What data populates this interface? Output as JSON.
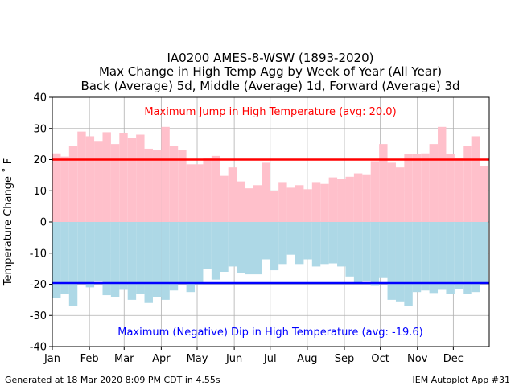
{
  "chart_data": {
    "type": "bar",
    "title_lines": [
      "IA0200 AMES-8-WSW (1893-2020)",
      "Max Change in High Temp Agg by Week of Year (All Year)",
      "Back (Average) 5d, Middle (Average) 1d, Forward (Average) 3d"
    ],
    "ylabel": "Temperature Change ˚ F",
    "ylim": [
      -40,
      40
    ],
    "yticks": [
      40,
      30,
      20,
      10,
      0,
      -10,
      -20,
      -30,
      -40
    ],
    "xlim": [
      1,
      366
    ],
    "xticks": [
      {
        "label": "Jan",
        "day": 1
      },
      {
        "label": "Feb",
        "day": 32
      },
      {
        "label": "Mar",
        "day": 61
      },
      {
        "label": "Apr",
        "day": 92
      },
      {
        "label": "May",
        "day": 122
      },
      {
        "label": "Jun",
        "day": 153
      },
      {
        "label": "Jul",
        "day": 183
      },
      {
        "label": "Aug",
        "day": 214
      },
      {
        "label": "Sep",
        "day": 245
      },
      {
        "label": "Oct",
        "day": 275
      },
      {
        "label": "Nov",
        "day": 306
      },
      {
        "label": "Dec",
        "day": 336
      }
    ],
    "grid": true,
    "series": [
      {
        "name": "Maximum Jump",
        "color": "#ffc0cb",
        "values": [
          22.0,
          21.0,
          24.5,
          29.0,
          27.5,
          26.0,
          28.8,
          25.0,
          28.5,
          27.0,
          28.0,
          23.5,
          23.0,
          30.5,
          24.5,
          23.0,
          18.5,
          18.5,
          20.5,
          21.2,
          14.8,
          17.5,
          13.0,
          10.8,
          11.8,
          19.0,
          10.0,
          12.8,
          11.0,
          11.8,
          10.5,
          12.8,
          12.2,
          14.3,
          13.8,
          14.5,
          15.6,
          15.3,
          19.5,
          25.0,
          19.0,
          17.5,
          21.8,
          21.8,
          22.0,
          25.0,
          30.5,
          21.8,
          20.5,
          24.5,
          27.5,
          18.0
        ]
      },
      {
        "name": "Maximum Dip",
        "color": "#add8e6",
        "values": [
          -24.5,
          -23.0,
          -27.0,
          -19.5,
          -21.0,
          -19.0,
          -23.5,
          -24.0,
          -21.8,
          -25.0,
          -23.0,
          -26.0,
          -24.0,
          -25.0,
          -22.0,
          -19.5,
          -22.5,
          -20.0,
          -15.0,
          -18.5,
          -16.0,
          -14.3,
          -16.5,
          -16.8,
          -16.8,
          -12.0,
          -15.5,
          -13.5,
          -10.5,
          -13.5,
          -12.0,
          -14.3,
          -13.5,
          -13.3,
          -14.3,
          -17.5,
          -19.5,
          -19.0,
          -20.5,
          -18.0,
          -25.0,
          -25.5,
          -27.0,
          -22.5,
          -22.0,
          -22.8,
          -21.8,
          -23.0,
          -21.5,
          -23.0,
          -22.5,
          -19.5
        ]
      }
    ],
    "reference_lines": [
      {
        "name": "avg-jump",
        "value": 20.0,
        "color": "#ff0000"
      },
      {
        "name": "avg-dip",
        "value": -19.6,
        "color": "#0000ff"
      }
    ],
    "annotations": {
      "jump": {
        "text": "Maximum Jump in High Temperature (avg: 20.0)",
        "color": "#ff0000"
      },
      "dip": {
        "text": "Maximum (Negative) Dip in High Temperature (avg: -19.6)",
        "color": "#0000ff"
      }
    }
  },
  "footer": {
    "left": "Generated at 18 Mar 2020 8:09 PM CDT in 4.55s",
    "right": "IEM Autoplot App #31"
  }
}
